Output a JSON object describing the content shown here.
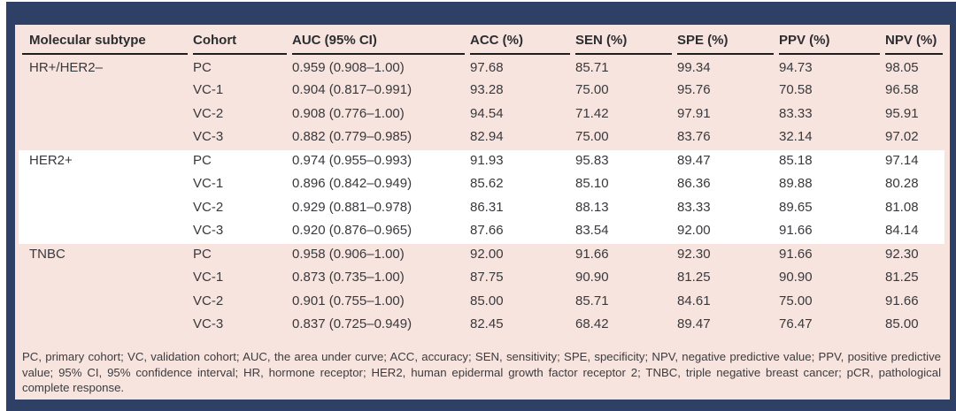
{
  "table": {
    "columns": [
      "Molecular subtype",
      "Cohort",
      "AUC (95% CI)",
      "ACC (%)",
      "SEN (%)",
      "SPE (%)",
      "PPV (%)",
      "NPV (%)"
    ],
    "sections": [
      {
        "subtype": "HR+/HER2–",
        "highlight": false,
        "rows": [
          {
            "cohort": "PC",
            "auc": "0.959 (0.908–1.00)",
            "acc": "97.68",
            "sen": "85.71",
            "spe": "99.34",
            "ppv": "94.73",
            "npv": "98.05"
          },
          {
            "cohort": "VC-1",
            "auc": "0.904 (0.817–0.991)",
            "acc": "93.28",
            "sen": "75.00",
            "spe": "95.76",
            "ppv": "70.58",
            "npv": "96.58"
          },
          {
            "cohort": "VC-2",
            "auc": "0.908 (0.776–1.00)",
            "acc": "94.54",
            "sen": "71.42",
            "spe": "97.91",
            "ppv": "83.33",
            "npv": "95.91"
          },
          {
            "cohort": "VC-3",
            "auc": "0.882 (0.779–0.985)",
            "acc": "82.94",
            "sen": "75.00",
            "spe": "83.76",
            "ppv": "32.14",
            "npv": "97.02"
          }
        ]
      },
      {
        "subtype": "HER2+",
        "highlight": true,
        "rows": [
          {
            "cohort": "PC",
            "auc": "0.974 (0.955–0.993)",
            "acc": "91.93",
            "sen": "95.83",
            "spe": "89.47",
            "ppv": "85.18",
            "npv": "97.14"
          },
          {
            "cohort": "VC-1",
            "auc": "0.896 (0.842–0.949)",
            "acc": "85.62",
            "sen": "85.10",
            "spe": "86.36",
            "ppv": "89.88",
            "npv": "80.28"
          },
          {
            "cohort": "VC-2",
            "auc": "0.929 (0.881–0.978)",
            "acc": "86.31",
            "sen": "88.13",
            "spe": "83.33",
            "ppv": "89.65",
            "npv": "81.08"
          },
          {
            "cohort": "VC-3",
            "auc": "0.920 (0.876–0.965)",
            "acc": "87.66",
            "sen": "83.54",
            "spe": "92.00",
            "ppv": "91.66",
            "npv": "84.14"
          }
        ]
      },
      {
        "subtype": "TNBC",
        "highlight": false,
        "rows": [
          {
            "cohort": "PC",
            "auc": "0.958 (0.906–1.00)",
            "acc": "92.00",
            "sen": "91.66",
            "spe": "92.30",
            "ppv": "91.66",
            "npv": "92.30"
          },
          {
            "cohort": "VC-1",
            "auc": "0.873 (0.735–1.00)",
            "acc": "87.75",
            "sen": "90.90",
            "spe": "81.25",
            "ppv": "90.90",
            "npv": "81.25"
          },
          {
            "cohort": "VC-2",
            "auc": "0.901 (0.755–1.00)",
            "acc": "85.00",
            "sen": "85.71",
            "spe": "84.61",
            "ppv": "75.00",
            "npv": "91.66"
          },
          {
            "cohort": "VC-3",
            "auc": "0.837 (0.725–0.949)",
            "acc": "82.45",
            "sen": "68.42",
            "spe": "89.47",
            "ppv": "76.47",
            "npv": "85.00"
          }
        ]
      }
    ],
    "footnote": "PC, primary cohort; VC, validation cohort; AUC, the area under curve; ACC, accuracy; SEN, sensitivity; SPE, specificity; NPV, negative predictive value; PPV, positive predictive value; 95% CI, 95% confidence interval; HR, hormone receptor; HER2, human epidermal growth factor receptor 2; TNBC, triple negative breast cancer; pCR, pathological complete response."
  },
  "colors": {
    "frame": "#2e4066",
    "panel": "#f8e4de",
    "highlight": "#ffffff",
    "text": "#38393d",
    "rule": "#1f1f1f"
  }
}
